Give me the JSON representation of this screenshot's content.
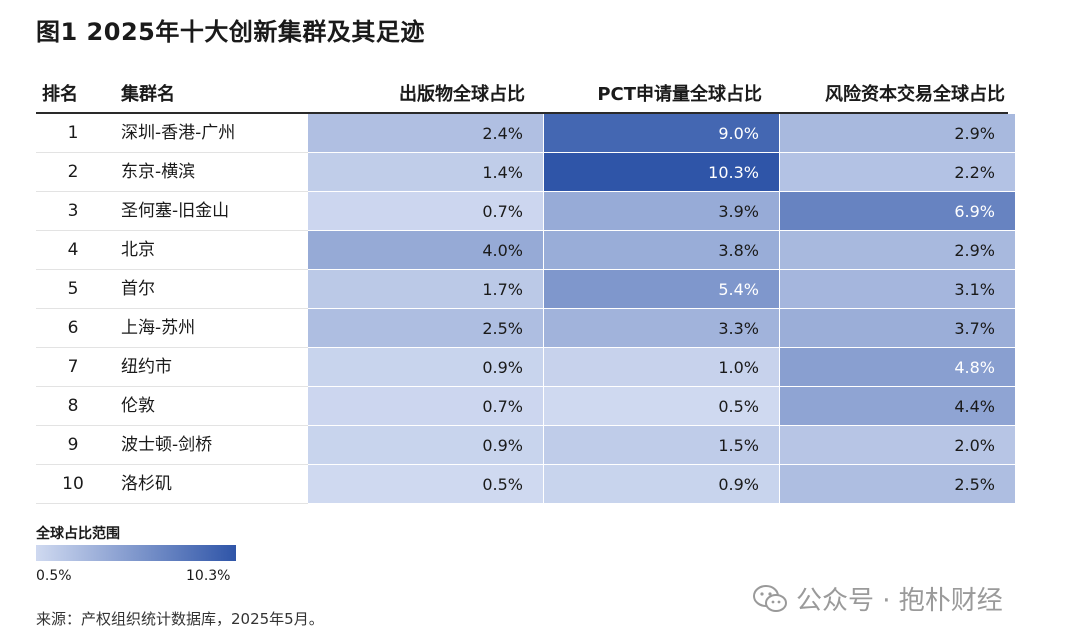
{
  "chart_data": {
    "type": "table",
    "title": "图1 2025年十大创新集群及其足迹",
    "columns": [
      "排名",
      "集群名",
      "出版物全球占比",
      "PCT申请量全球占比",
      "风险资本交易全球占比"
    ],
    "rows": [
      {
        "rank": "1",
        "name": "深圳-香港-广州",
        "pub": "2.4%",
        "pct": "9.0%",
        "vc": "2.9%"
      },
      {
        "rank": "2",
        "name": "东京-横滨",
        "pub": "1.4%",
        "pct": "10.3%",
        "vc": "2.2%"
      },
      {
        "rank": "3",
        "name": "圣何塞-旧金山",
        "pub": "0.7%",
        "pct": "3.9%",
        "vc": "6.9%"
      },
      {
        "rank": "4",
        "name": "北京",
        "pub": "4.0%",
        "pct": "3.8%",
        "vc": "2.9%"
      },
      {
        "rank": "5",
        "name": "首尔",
        "pub": "1.7%",
        "pct": "5.4%",
        "vc": "3.1%"
      },
      {
        "rank": "6",
        "name": "上海-苏州",
        "pub": "2.5%",
        "pct": "3.3%",
        "vc": "3.7%"
      },
      {
        "rank": "7",
        "name": "纽约市",
        "pub": "0.9%",
        "pct": "1.0%",
        "vc": "4.8%"
      },
      {
        "rank": "8",
        "name": "伦敦",
        "pub": "0.7%",
        "pct": "0.5%",
        "vc": "4.4%"
      },
      {
        "rank": "9",
        "name": "波士顿-剑桥",
        "pub": "0.9%",
        "pct": "1.5%",
        "vc": "2.0%"
      },
      {
        "rank": "10",
        "name": "洛杉矶",
        "pub": "0.5%",
        "pct": "0.9%",
        "vc": "2.5%"
      }
    ],
    "legend": {
      "title": "全球占比范围",
      "min_label": "0.5%",
      "max_label": "10.3%",
      "min": 0.5,
      "max": 10.3
    },
    "colors": {
      "low": "#cfd9f0",
      "high": "#2f55a8"
    }
  },
  "source": "来源：产权组织统计数据库，2025年5月。",
  "watermark": "公众号 · 抱朴财经"
}
